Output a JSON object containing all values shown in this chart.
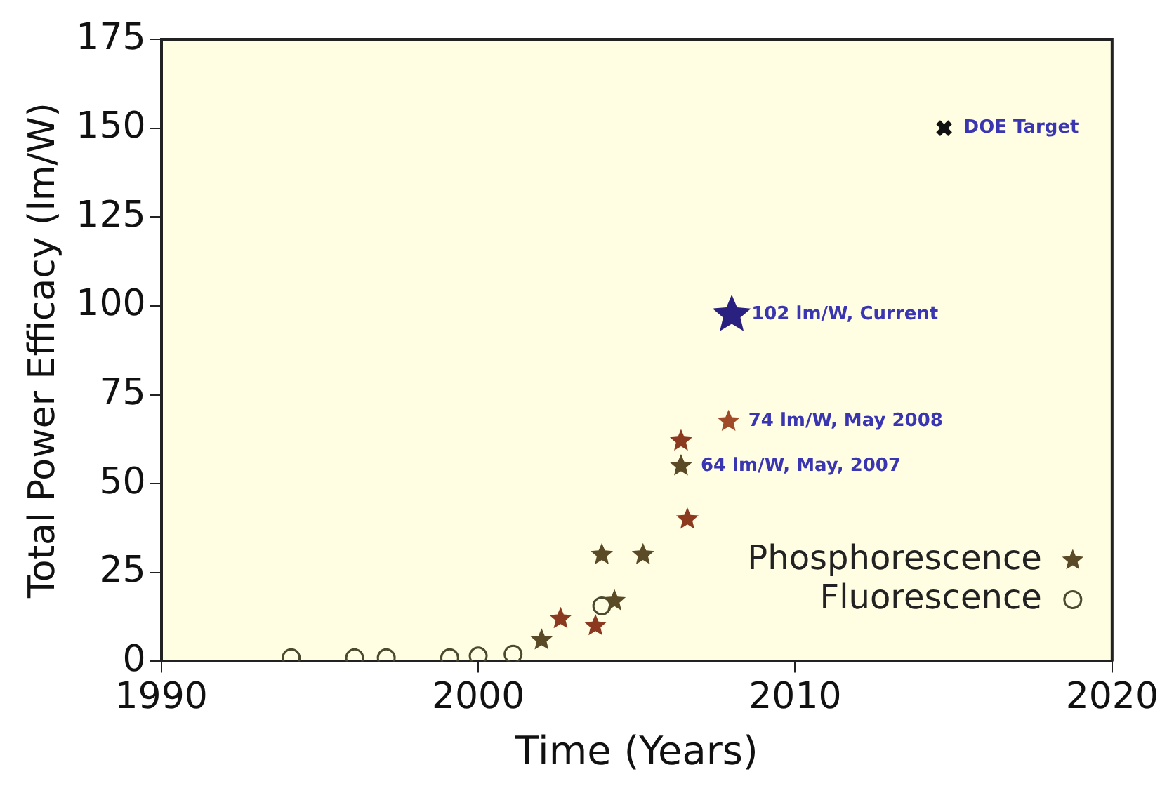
{
  "chart_data": {
    "type": "scatter",
    "xlabel": "Time (Years)",
    "ylabel": "Total Power Efficacy (lm/W)",
    "xlim": [
      1990,
      2020
    ],
    "xticks": [
      1990,
      2000,
      2010,
      2020
    ],
    "ylim": [
      0,
      175
    ],
    "yticks": [
      0,
      25,
      50,
      75,
      100,
      125,
      150,
      175
    ],
    "grid": false,
    "legend": "bottom right",
    "series": [
      {
        "name": "Phosphorescence",
        "color": "#5a4a25",
        "colors": [
          "#5a4a25",
          "#8b3a20",
          "#8b3a20",
          "#5a4a25",
          "#5a4a25",
          "#5a4a25",
          "#8b3a20",
          "#5a4a25",
          "#8b3a20",
          "#a04a28"
        ],
        "marker": "star",
        "x": [
          2002.0,
          2002.6,
          2003.7,
          2003.9,
          2004.3,
          2005.2,
          2006.4,
          2006.4,
          2006.6,
          2007.9
        ],
        "values": [
          6,
          12,
          10,
          30,
          17,
          30,
          62,
          55,
          40,
          67.5
        ]
      },
      {
        "name": "Fluorescence",
        "color": "#4a4a30",
        "marker": "circle",
        "x": [
          1994.1,
          1996.1,
          1997.1,
          1999.1,
          2000.0,
          2001.1,
          2003.9
        ],
        "values": [
          1,
          1,
          1,
          1,
          1.5,
          2,
          15.6
        ]
      },
      {
        "color": "#2a2080",
        "marker": "star",
        "x": [
          2008.0
        ],
        "values": [
          97.5
        ]
      },
      {
        "color": "#111111",
        "marker": "cross",
        "x": [
          2014.7
        ],
        "values": [
          150
        ]
      }
    ],
    "annotations": [
      {
        "text": "DOE Target",
        "x": 2014.7,
        "y": 150
      },
      {
        "text": "102 lm/W, Current",
        "x": 2008.0,
        "y": 97.5
      },
      {
        "text": "74 lm/W, May 2008",
        "x": 2007.9,
        "y": 67.5
      },
      {
        "text": "64 lm/W, May, 2007",
        "x": 2006.4,
        "y": 55
      }
    ]
  }
}
